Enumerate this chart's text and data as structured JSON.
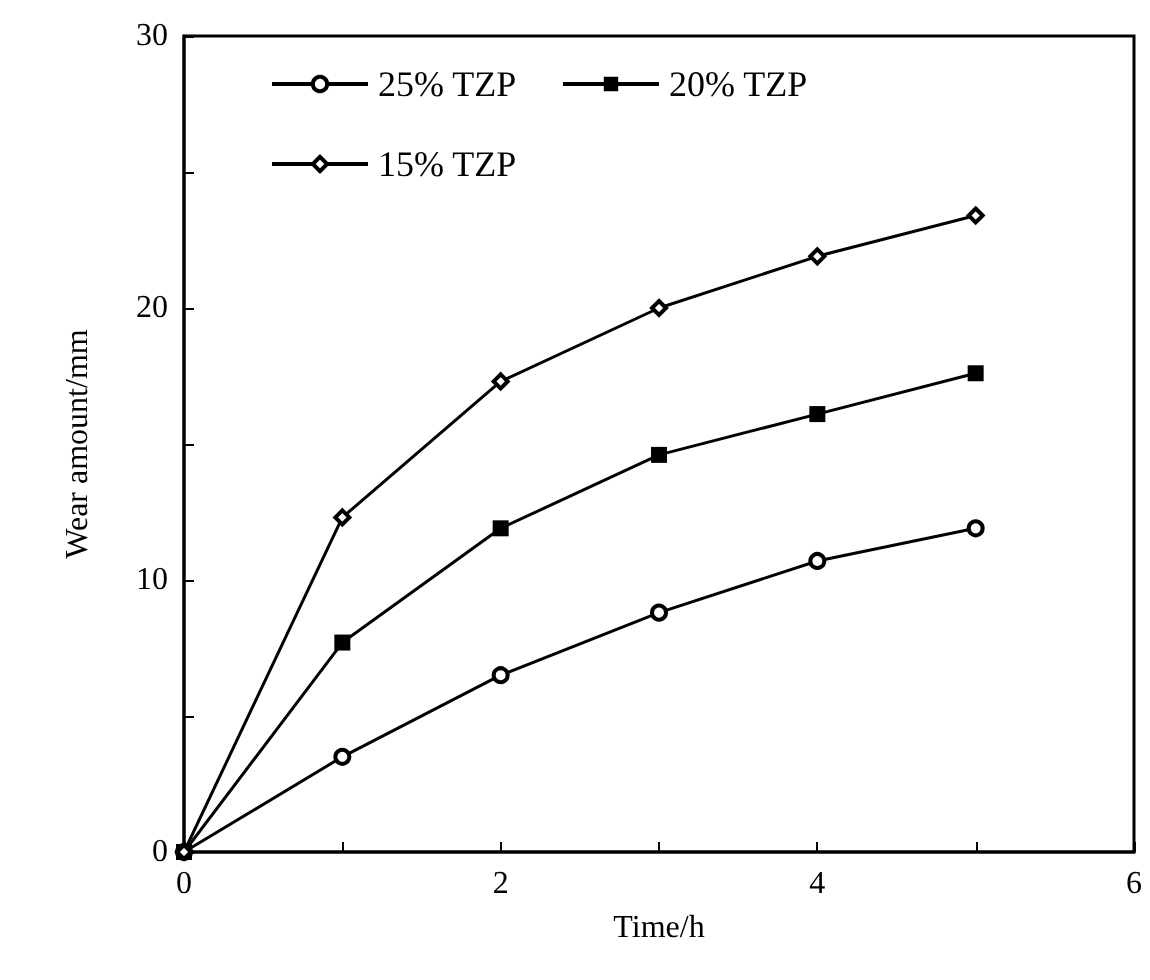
{
  "chart_data": {
    "type": "line",
    "xlabel": "Time/h",
    "ylabel": "Wear amount/mm",
    "x": [
      0,
      1,
      2,
      3,
      4,
      5
    ],
    "series": [
      {
        "name": "25% TZP",
        "color": "#000000",
        "marker": "circle",
        "values": [
          0,
          3.5,
          6.5,
          8.8,
          10.7,
          11.9
        ]
      },
      {
        "name": "20% TZP",
        "color": "#000000",
        "marker": "square",
        "values": [
          0,
          7.7,
          11.9,
          14.6,
          16.1,
          17.6
        ]
      },
      {
        "name": "15% TZP",
        "color": "#000000",
        "marker": "diamond",
        "values": [
          0,
          12.3,
          17.3,
          20.0,
          21.9,
          23.4
        ]
      }
    ],
    "xlim": [
      0,
      6
    ],
    "xticks": [
      0,
      {
        "value": 1,
        "label": null
      },
      2,
      {
        "value": 3,
        "label": null
      },
      4,
      {
        "value": 5,
        "label": null
      },
      6
    ],
    "ylim": [
      0,
      30
    ],
    "yticks": [
      0,
      {
        "value": 5,
        "label": null
      },
      10,
      {
        "value": 15,
        "label": null
      },
      20,
      {
        "value": 25,
        "label": null
      },
      30
    ],
    "grid": false,
    "legend": "top left"
  }
}
